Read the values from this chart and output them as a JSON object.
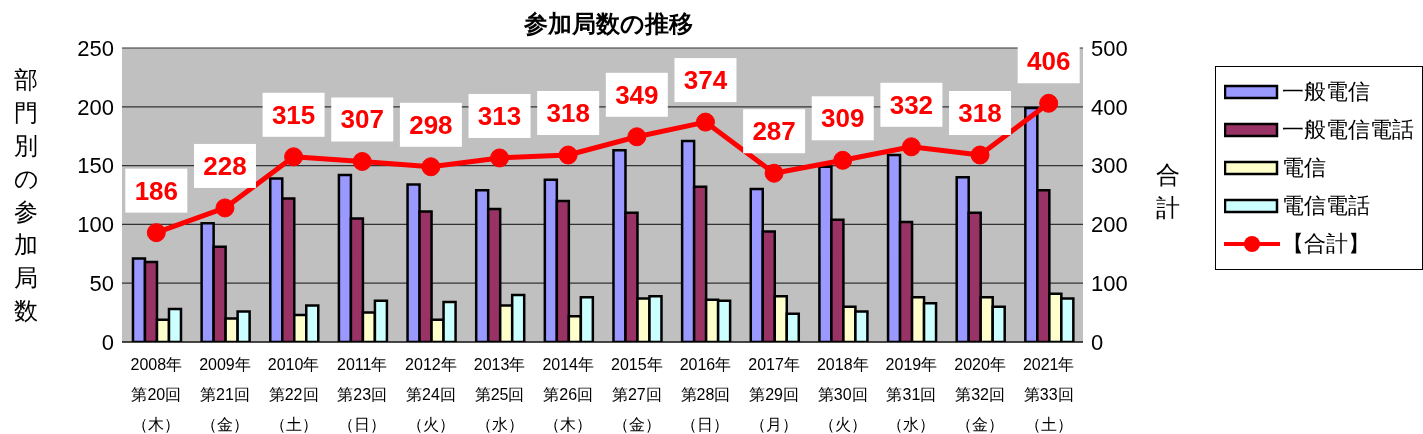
{
  "chart_data": {
    "type": "bar",
    "title": "参加局数の推移",
    "ylabel": "部門別の参加局数",
    "y2label": "合計",
    "categories": [
      "2008年第20回（木）",
      "2009年第21回（金）",
      "2010年第22回（土）",
      "2011年第23回（日）",
      "2012年第24回（火）",
      "2013年第25回（水）",
      "2014年第26回（木）",
      "2015年第27回（金）",
      "2016年第28回（日）",
      "2017年第29回（月）",
      "2018年第30回（火）",
      "2019年第31回（水）",
      "2020年第32回（金）",
      "2021年第33回（土）"
    ],
    "series": [
      {
        "name": "一般電信",
        "color": "#9999ff",
        "values": [
          71,
          101,
          139,
          142,
          134,
          129,
          138,
          163,
          171,
          130,
          149,
          159,
          140,
          199
        ]
      },
      {
        "name": "一般電信電話",
        "color": "#993366",
        "values": [
          68,
          81,
          122,
          105,
          111,
          113,
          120,
          110,
          132,
          94,
          104,
          102,
          110,
          129
        ]
      },
      {
        "name": "電信",
        "color": "#ffffcc",
        "values": [
          19,
          20,
          23,
          25,
          19,
          31,
          22,
          37,
          36,
          39,
          30,
          38,
          38,
          41
        ]
      },
      {
        "name": "電信電話",
        "color": "#ccffff",
        "values": [
          28,
          26,
          31,
          35,
          34,
          40,
          38,
          39,
          35,
          24,
          26,
          33,
          30,
          37
        ]
      },
      {
        "name": "【合計】",
        "type": "line",
        "axis": "y2",
        "color": "#ff0000",
        "marker": "circle",
        "data_labels": true,
        "values": [
          186,
          228,
          315,
          307,
          298,
          313,
          318,
          349,
          374,
          287,
          309,
          332,
          318,
          406
        ]
      }
    ],
    "ylim": [
      0,
      250
    ],
    "yticks": [
      0,
      50,
      100,
      150,
      200,
      250
    ],
    "y2lim": [
      0,
      500
    ],
    "y2ticks": [
      0,
      100,
      200,
      300,
      400,
      500
    ],
    "grid": "y",
    "legend": "right"
  }
}
